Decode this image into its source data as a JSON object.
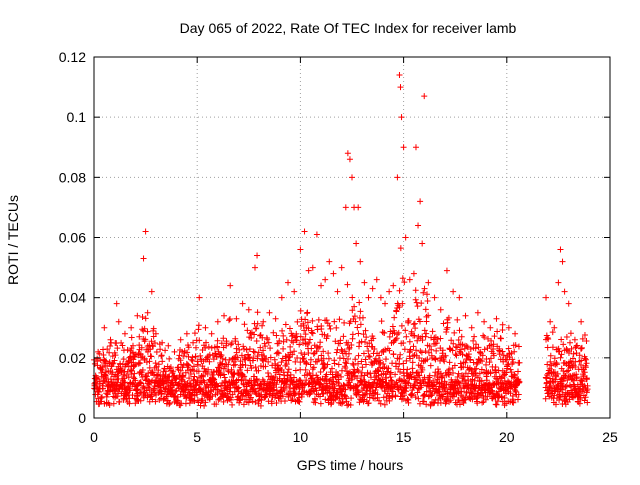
{
  "chart_data": {
    "type": "scatter",
    "title": "Day 065 of 2022, Rate Of TEC Index for receiver lamb",
    "xlabel": "GPS time / hours",
    "ylabel": "ROTI / TECUs",
    "xlim": [
      0,
      25
    ],
    "ylim": [
      0,
      0.12
    ],
    "x_ticks": [
      0,
      5,
      10,
      15,
      20,
      25
    ],
    "y_ticks": [
      0,
      0.02,
      0.04,
      0.06,
      0.08,
      0.1,
      0.12
    ],
    "x_tick_labels": [
      "0",
      "5",
      "10",
      "15",
      "20",
      "25"
    ],
    "y_tick_labels": [
      "0",
      "0.02",
      "0.04",
      "0.06",
      "0.08",
      "0.1",
      "0.12"
    ],
    "grid": true,
    "marker": "+",
    "series": [
      {
        "name": "ROTI",
        "color": "#ff0000",
        "x": [
          0.2,
          0.5,
          0.8,
          1.1,
          1.2,
          1.5,
          1.8,
          2.1,
          2.4,
          2.5,
          2.6,
          2.8,
          3.0,
          3.3,
          3.6,
          3.9,
          4.2,
          4.5,
          4.8,
          5.1,
          5.4,
          5.7,
          6.0,
          6.3,
          6.6,
          6.9,
          7.2,
          7.5,
          7.8,
          7.9,
          8.2,
          8.5,
          8.8,
          9.1,
          9.4,
          9.7,
          10.0,
          10.2,
          10.4,
          10.6,
          10.8,
          11.0,
          11.2,
          11.4,
          11.6,
          11.8,
          12.0,
          12.2,
          12.3,
          12.4,
          12.5,
          12.6,
          12.7,
          12.8,
          12.9,
          13.1,
          13.3,
          13.5,
          13.7,
          13.9,
          14.1,
          14.3,
          14.5,
          14.7,
          14.8,
          14.85,
          14.9,
          15.0,
          15.1,
          15.3,
          15.5,
          15.6,
          15.7,
          15.8,
          15.9,
          16.0,
          16.2,
          16.5,
          16.8,
          17.1,
          17.4,
          17.7,
          18.0,
          18.3,
          18.6,
          18.9,
          19.2,
          19.5,
          19.8,
          20.1,
          20.4,
          21.9,
          22.1,
          22.3,
          22.5,
          22.6,
          22.7,
          22.8,
          23.0,
          23.3,
          23.6
        ],
        "y": [
          0.022,
          0.03,
          0.026,
          0.038,
          0.032,
          0.028,
          0.03,
          0.034,
          0.053,
          0.062,
          0.035,
          0.042,
          0.028,
          0.025,
          0.024,
          0.022,
          0.026,
          0.028,
          0.025,
          0.04,
          0.03,
          0.028,
          0.032,
          0.034,
          0.044,
          0.033,
          0.038,
          0.036,
          0.05,
          0.054,
          0.032,
          0.035,
          0.033,
          0.04,
          0.045,
          0.042,
          0.056,
          0.062,
          0.049,
          0.05,
          0.061,
          0.044,
          0.046,
          0.052,
          0.048,
          0.042,
          0.05,
          0.07,
          0.088,
          0.086,
          0.08,
          0.07,
          0.058,
          0.07,
          0.052,
          0.045,
          0.04,
          0.043,
          0.046,
          0.04,
          0.038,
          0.042,
          0.044,
          0.08,
          0.114,
          0.11,
          0.1,
          0.09,
          0.06,
          0.046,
          0.048,
          0.09,
          0.064,
          0.072,
          0.058,
          0.107,
          0.045,
          0.04,
          0.036,
          0.049,
          0.042,
          0.04,
          0.034,
          0.03,
          0.035,
          0.032,
          0.03,
          0.033,
          0.031,
          0.03,
          0.028,
          0.04,
          0.032,
          0.03,
          0.045,
          0.056,
          0.052,
          0.042,
          0.038,
          0.026,
          0.032
        ],
        "baseline_min": 0.004,
        "baseline_typical": 0.012
      }
    ]
  }
}
